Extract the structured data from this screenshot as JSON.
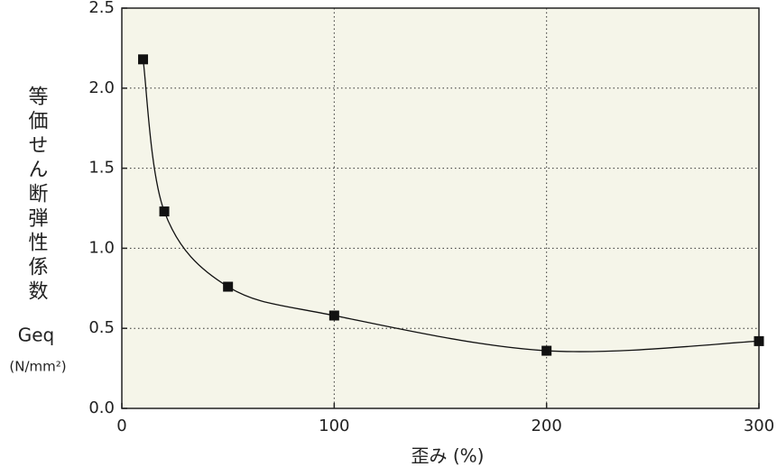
{
  "chart_data": {
    "type": "line",
    "ylabel": [
      "等価せん断弾性係数",
      "Geq",
      "(N/mm²)"
    ],
    "xlabel": "歪み (%)",
    "x": [
      10,
      20,
      50,
      100,
      200,
      300
    ],
    "series": [
      {
        "color": "#111111",
        "values": [
          2.18,
          1.23,
          0.76,
          0.58,
          0.36,
          0.42
        ]
      }
    ],
    "xlim": [
      0,
      300
    ],
    "xticks": [
      0,
      100,
      200,
      300
    ],
    "ylim": [
      0,
      2.5
    ],
    "yticks": [
      {
        "value": 0,
        "label": "0.0"
      },
      0.5,
      {
        "value": 1,
        "label": "1.0"
      },
      1.5,
      {
        "value": 2,
        "label": "2.0"
      },
      2.5
    ],
    "grid": true,
    "background": "#f5f5e9",
    "smooth": true
  }
}
